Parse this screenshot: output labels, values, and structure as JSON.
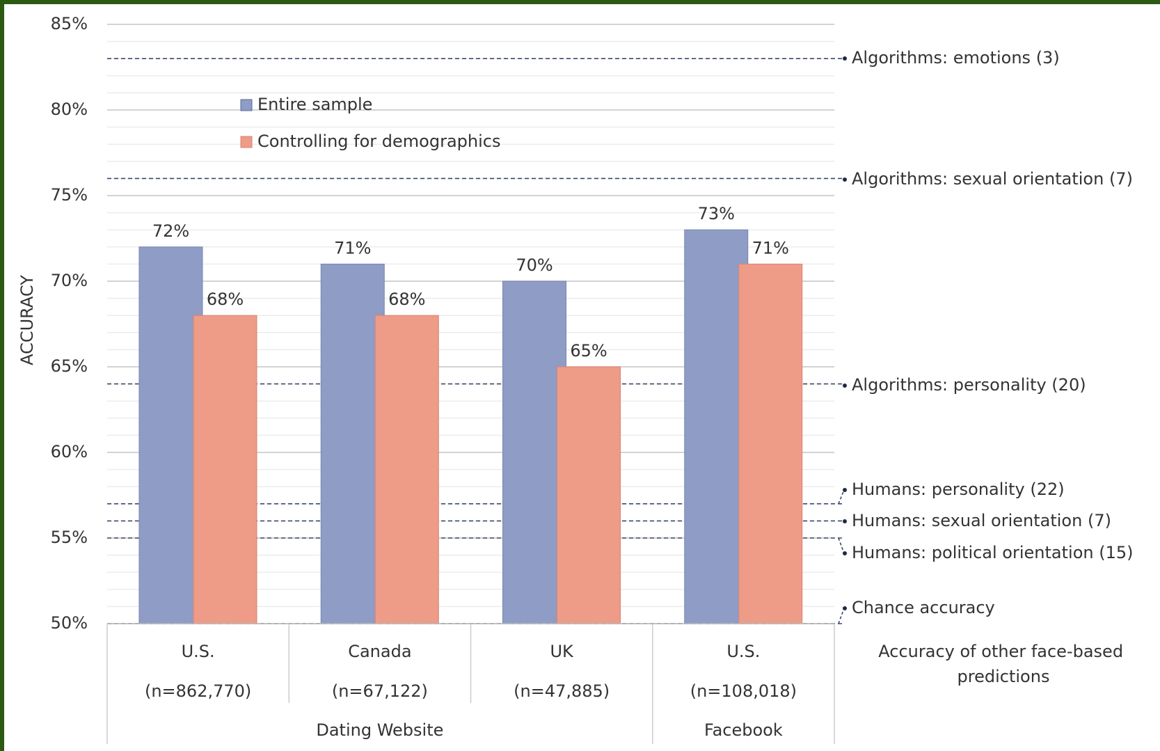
{
  "chart_data": {
    "type": "bar",
    "y_label": "ACCURACY",
    "categories": [
      "U.S.",
      "Canada",
      "UK",
      "U.S."
    ],
    "category_sublabels": [
      "(n=862,770)",
      "(n=67,122)",
      "(n=47,885)",
      "(n=108,018)"
    ],
    "groups": [
      {
        "name": "Dating Website",
        "span": [
          0,
          2
        ]
      },
      {
        "name": "Facebook",
        "span": [
          3,
          3
        ]
      }
    ],
    "series": [
      {
        "name": "Entire sample",
        "color": "#8e9cc6",
        "values": [
          72,
          71,
          70,
          73
        ],
        "value_labels": [
          "72%",
          "71%",
          "70%",
          "73%"
        ]
      },
      {
        "name": "Controlling for demographics",
        "color": "#ee9b88",
        "values": [
          68,
          68,
          65,
          71
        ],
        "value_labels": [
          "68%",
          "68%",
          "65%",
          "71%"
        ]
      }
    ],
    "ylim": [
      50,
      85
    ],
    "yticks": [
      {
        "value": 50,
        "label": "50%"
      },
      {
        "value": 55,
        "label": "55%"
      },
      {
        "value": 60,
        "label": "60%"
      },
      {
        "value": 65,
        "label": "65%"
      },
      {
        "value": 70,
        "label": "70%"
      },
      {
        "value": 75,
        "label": "75%"
      },
      {
        "value": 80,
        "label": "80%"
      },
      {
        "value": 85,
        "label": "85%"
      }
    ],
    "grid": true,
    "minor_grid": true,
    "legend": "top-left",
    "reference_title": "Accuracy of other face-based predictions",
    "reference_lines": [
      {
        "label": "Algorithms: emotions (3)",
        "value": 83
      },
      {
        "label": "Algorithms: sexual orientation (7)",
        "value": 76
      },
      {
        "label": "Algorithms: personality (20)",
        "value": 64
      },
      {
        "label": "Humans: personality (22)",
        "value": 57
      },
      {
        "label": "Humans: sexual orientation (7)",
        "value": 56
      },
      {
        "label": "Humans: political orientation (15)",
        "value": 55
      },
      {
        "label": "Chance accuracy",
        "value": 50
      }
    ]
  }
}
